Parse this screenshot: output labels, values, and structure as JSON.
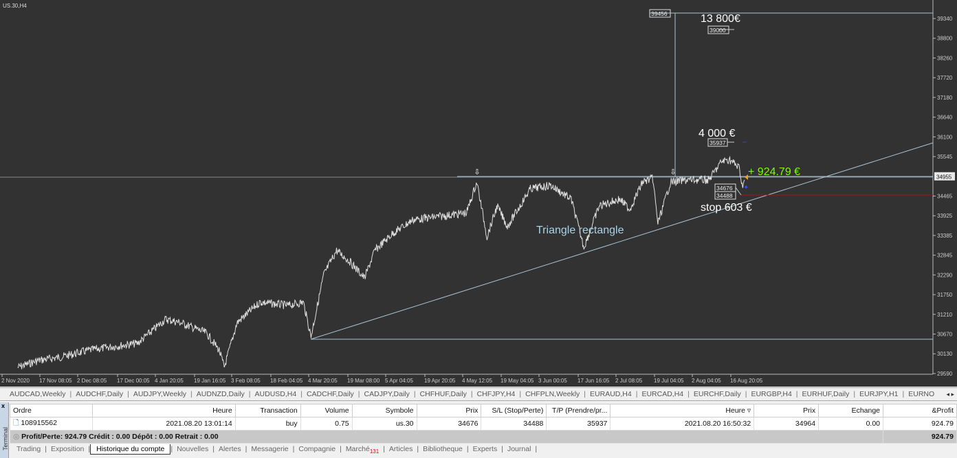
{
  "chart_title": "US.30,H4",
  "chart_data": {
    "type": "line",
    "symbol": "US.30",
    "timeframe": "H4",
    "x_unit": "days since 2 Nov 2020",
    "series": [
      [
        1,
        29760
      ],
      [
        9,
        29948
      ],
      [
        18,
        30043
      ],
      [
        29,
        30231
      ],
      [
        38,
        30326
      ],
      [
        48,
        30420
      ],
      [
        59,
        31080
      ],
      [
        65,
        30986
      ],
      [
        75,
        30703
      ],
      [
        80,
        30231
      ],
      [
        82,
        29760
      ],
      [
        87,
        30986
      ],
      [
        96,
        31551
      ],
      [
        107,
        31457
      ],
      [
        113,
        31551
      ],
      [
        116,
        30608
      ],
      [
        121,
        32306
      ],
      [
        126,
        32966
      ],
      [
        131,
        32683
      ],
      [
        137,
        32212
      ],
      [
        141,
        32966
      ],
      [
        148,
        33437
      ],
      [
        156,
        33815
      ],
      [
        167,
        33909
      ],
      [
        177,
        34003
      ],
      [
        181,
        34852
      ],
      [
        185,
        33343
      ],
      [
        189,
        34192
      ],
      [
        193,
        33626
      ],
      [
        202,
        34663
      ],
      [
        210,
        34758
      ],
      [
        218,
        34380
      ],
      [
        223,
        33060
      ],
      [
        229,
        34192
      ],
      [
        237,
        34380
      ],
      [
        241,
        34097
      ],
      [
        246,
        34852
      ],
      [
        250,
        34946
      ],
      [
        252,
        33720
      ],
      [
        257,
        34852
      ],
      [
        264,
        34908
      ],
      [
        272,
        34908
      ],
      [
        277,
        35417
      ],
      [
        280,
        35474
      ],
      [
        284,
        35229
      ],
      [
        285,
        34758
      ],
      [
        286,
        34908
      ]
    ],
    "ylim": [
      29590,
      39600
    ],
    "yticks": [
      "39340",
      "38800",
      "38260",
      "37720",
      "37180",
      "36640",
      "36100",
      "35545",
      "34955",
      "34465",
      "33925",
      "33385",
      "32845",
      "32290",
      "31750",
      "31210",
      "30670",
      "30130",
      "29590"
    ],
    "current_price": "34955",
    "xticks": [
      "2 Nov 2020",
      "17 Nov 08:05",
      "2 Dec 08:05",
      "17 Dec 00:05",
      "4 Jan 20:05",
      "19 Jan 16:05",
      "3 Feb 08:05",
      "18 Feb 04:05",
      "4 Mar 20:05",
      "19 Mar 08:00",
      "5 Apr 04:05",
      "19 Apr 20:05",
      "4 May 12:05",
      "19 May 04:05",
      "3 Jun 00:05",
      "17 Jun 16:05",
      "2 Jul 08:05",
      "19 Jul 04:05",
      "2 Aug 04:05",
      "16 Aug 20:05"
    ],
    "levels": {
      "resistance": 34955,
      "stop": 34465,
      "base": 30670,
      "target_top": 39456
    },
    "annotations": {
      "target_big": "13 800€",
      "target_big_price": "39000",
      "target_top_price": "39456",
      "target_tp": "4 000 €",
      "tp_price": "35937",
      "profit": "+ 924.79 €",
      "entry_price": "34676",
      "sl_price": "34488",
      "stop": "stop 603 €",
      "pattern": "Triangle rectangle"
    },
    "colors": {
      "bg": "#323232",
      "price": "#e0e0e0",
      "lines": "#a9c4d4",
      "stop": "#b01010",
      "profit": "#7cfc00"
    }
  },
  "symbol_tabs": [
    "AUDCAD,Weekly",
    "AUDCHF,Daily",
    "AUDJPY,Weekly",
    "AUDNZD,Daily",
    "AUDUSD,H4",
    "CADCHF,Daily",
    "CADJPY,Daily",
    "CHFHUF,Daily",
    "CHFJPY,H4",
    "CHFPLN,Weekly",
    "EURAUD,H4",
    "EURCAD,H4",
    "EURCHF,Daily",
    "EURGBP,H4",
    "EURHUF,Daily",
    "EURJPY,H1",
    "EURNO"
  ],
  "terminal": {
    "label": "Terminal",
    "close": "x",
    "columns": [
      "Ordre",
      "Heure",
      "Transaction",
      "Volume",
      "Symbole",
      "Prix",
      "S/L (Stop/Perte)",
      "T/P (Prendre/pr...",
      "Heure ▿",
      "Prix",
      "Echange",
      "&Profit"
    ],
    "row": [
      "108915562",
      "2021.08.20 13:01:14",
      "buy",
      "0.75",
      "us.30",
      "34676",
      "34488",
      "35937",
      "2021.08.20 16:50:32",
      "34964",
      "0.00",
      "924.79"
    ],
    "summary": "Profit/Perte: 924.79  Crédit : 0.00  Dépôt : 0.00  Retrait : 0.00",
    "total": "924.79",
    "tabs": [
      "Trading",
      "Exposition",
      "Historique du compte",
      "Nouvelles",
      "Alertes",
      "Messagerie",
      "Compagnie",
      "Marché",
      "Articles",
      "Bibliotheque",
      "Experts",
      "Journal"
    ],
    "active_tab": "Historique du compte",
    "market_badge": "131"
  }
}
